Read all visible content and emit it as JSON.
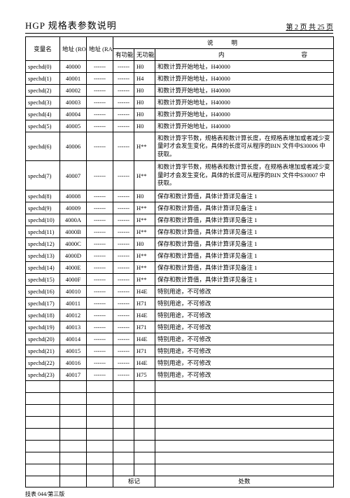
{
  "header": {
    "title": "HGP 规格表参数说明",
    "pager": "第 2 页 共 25 页"
  },
  "cols": {
    "var": "变量名",
    "rom": "地址 (ROM)",
    "ram": "地址 (RAM)",
    "desc": "说明",
    "func1": "有功能",
    "func2": "无功能",
    "content": "内容"
  },
  "rows": [
    {
      "v": "spechd(0)",
      "a": "40000",
      "f1": "------",
      "f2": "H0",
      "c": "和数计算开始地址，H40000"
    },
    {
      "v": "spechd(1)",
      "a": "40001",
      "f1": "------",
      "f2": "H4",
      "c": "和数计算开始地址，H40000"
    },
    {
      "v": "spechd(2)",
      "a": "40002",
      "f1": "------",
      "f2": "H0",
      "c": "和数计算开始地址，H40000"
    },
    {
      "v": "spechd(3)",
      "a": "40003",
      "f1": "------",
      "f2": "H0",
      "c": "和数计算开始地址，H40000"
    },
    {
      "v": "spechd(4)",
      "a": "40004",
      "f1": "------",
      "f2": "H0",
      "c": "和数计算开始地址，H40000"
    },
    {
      "v": "spechd(5)",
      "a": "40005",
      "f1": "------",
      "f2": "H0",
      "c": "和数计算开始地址，H40000"
    },
    {
      "v": "spechd(6)",
      "a": "40006",
      "f1": "------",
      "f2": "H**",
      "c": "和数计算字节数，规格表和数计算长度，在规格表增加或者减少变量时才会发生变化，具体的长度可从程序的BIN 文件中$30006 中获取。",
      "wrap": true
    },
    {
      "v": "spechd(7)",
      "a": "40007",
      "f1": "------",
      "f2": "H**",
      "c": "和数计算字节数，规格表和数计算长度，在规格表增加或者减少变量时才会发生变化，具体的长度可从程序的BIN 文件中$30007 中获取。",
      "wrap": true
    },
    {
      "v": "spechd(8)",
      "a": "40008",
      "f1": "------",
      "f2": "H0",
      "c": "保存和数计算值，具体计算详见备注 1"
    },
    {
      "v": "spechd(9)",
      "a": "40009",
      "f1": "------",
      "f2": "H**",
      "c": "保存和数计算值，具体计算详见备注 1"
    },
    {
      "v": "spechd(10)",
      "a": "4000A",
      "f1": "------",
      "f2": "H**",
      "c": "保存和数计算值，具体计算详见备注 1"
    },
    {
      "v": "spechd(11)",
      "a": "4000B",
      "f1": "------",
      "f2": "H**",
      "c": "保存和数计算值，具体计算详见备注 1"
    },
    {
      "v": "spechd(12)",
      "a": "4000C",
      "f1": "------",
      "f2": "H0",
      "c": "保存和数计算值，具体计算详见备注 1"
    },
    {
      "v": "spechd(13)",
      "a": "4000D",
      "f1": "------",
      "f2": "H**",
      "c": "保存和数计算值，具体计算详见备注 1"
    },
    {
      "v": "spechd(14)",
      "a": "4000E",
      "f1": "------",
      "f2": "H**",
      "c": "保存和数计算值，具体计算详见备注 1"
    },
    {
      "v": "spechd(15)",
      "a": "4000F",
      "f1": "------",
      "f2": "H**",
      "c": "保存和数计算值，具体计算详见备注 1"
    },
    {
      "v": "spechd(16)",
      "a": "40010",
      "f1": "------",
      "f2": "H4E",
      "c": "特别用途，不可修改"
    },
    {
      "v": "spechd(17)",
      "a": "40011",
      "f1": "------",
      "f2": "H71",
      "c": "特别用途，不可修改"
    },
    {
      "v": "spechd(18)",
      "a": "40012",
      "f1": "------",
      "f2": "H4E",
      "c": "特别用途，不可修改"
    },
    {
      "v": "spechd(19)",
      "a": "40013",
      "f1": "------",
      "f2": "H71",
      "c": "特别用途，不可修改"
    },
    {
      "v": "spechd(20)",
      "a": "40014",
      "f1": "------",
      "f2": "H4E",
      "c": "特别用途，不可修改"
    },
    {
      "v": "spechd(21)",
      "a": "40015",
      "f1": "------",
      "f2": "H71",
      "c": "特别用途，不可修改"
    },
    {
      "v": "spechd(22)",
      "a": "40016",
      "f1": "------",
      "f2": "H4E",
      "c": "特别用途，不可修改"
    },
    {
      "v": "spechd(23)",
      "a": "40017",
      "f1": "------",
      "f2": "H75",
      "c": "特别用途，不可修改"
    }
  ],
  "emptyRows": 8,
  "footer": {
    "mark": "标记",
    "qty": "处数"
  },
  "footnote": "技表 044/第三版",
  "dashes": "------"
}
